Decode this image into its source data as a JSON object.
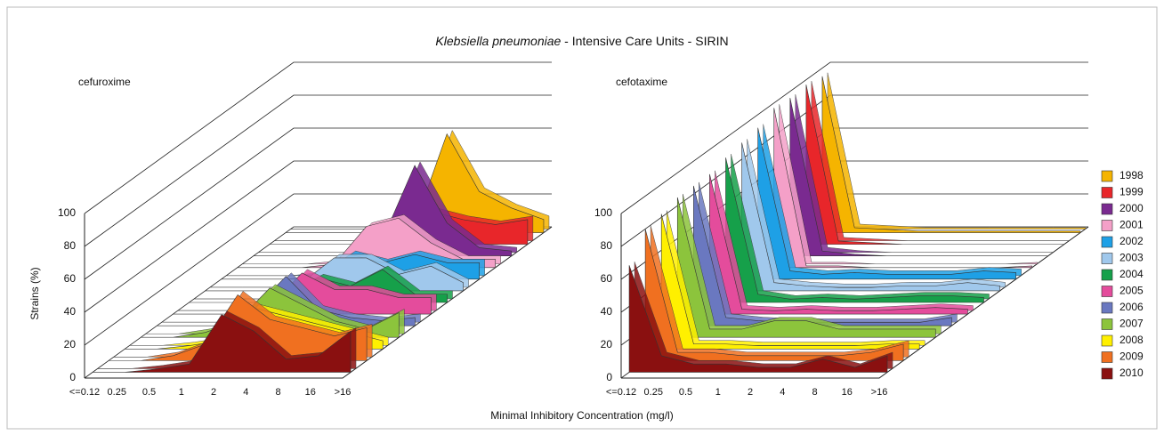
{
  "chart_data": [
    {
      "type": "area3d",
      "title_italic": "Klebsiella pneumoniae",
      "title": " - Intensive Care Units - SIRIN",
      "subtitle": "cefuroxime",
      "ylabel": "Strains (%)",
      "xlabel": "Minimal Inhibitory Concentration (mg/l)",
      "categories": [
        "<=0.12",
        "0.25",
        "0.5",
        "1",
        "2",
        "4",
        "8",
        "16",
        ">16"
      ],
      "ylim": [
        0,
        100
      ],
      "yticks": [
        0,
        20,
        40,
        60,
        80,
        100
      ],
      "grid": true,
      "legend": "right",
      "series": [
        {
          "name": "1998",
          "color": "#f5b400",
          "values": [
            0,
            0,
            0,
            0,
            5,
            60,
            25,
            15,
            8
          ]
        },
        {
          "name": "1999",
          "color": "#e8262a",
          "values": [
            0,
            0,
            0,
            0,
            3,
            20,
            15,
            12,
            15
          ]
        },
        {
          "name": "2000",
          "color": "#7a2a90",
          "values": [
            0,
            0,
            0,
            0,
            10,
            55,
            20,
            5,
            3
          ]
        },
        {
          "name": "2001",
          "color": "#f4a0c8",
          "values": [
            0,
            0,
            0,
            2,
            25,
            30,
            15,
            5,
            5
          ]
        },
        {
          "name": "2002",
          "color": "#1ea0e6",
          "values": [
            0,
            0,
            0,
            2,
            15,
            10,
            15,
            10,
            10
          ]
        },
        {
          "name": "2003",
          "color": "#a0c8ec",
          "values": [
            0,
            0,
            0,
            5,
            20,
            20,
            10,
            15,
            5
          ]
        },
        {
          "name": "2004",
          "color": "#16a04a",
          "values": [
            0,
            0,
            0,
            5,
            15,
            10,
            20,
            5,
            5
          ]
        },
        {
          "name": "2005",
          "color": "#e44c9c",
          "values": [
            0,
            0,
            0,
            5,
            25,
            15,
            15,
            10,
            10
          ]
        },
        {
          "name": "2006",
          "color": "#6a78c0",
          "values": [
            0,
            0,
            0,
            10,
            30,
            10,
            5,
            3,
            5
          ]
        },
        {
          "name": "2007",
          "color": "#8cc43c",
          "values": [
            0,
            0,
            3,
            10,
            30,
            20,
            10,
            5,
            15
          ]
        },
        {
          "name": "2008",
          "color": "#fff000",
          "values": [
            0,
            0,
            2,
            5,
            25,
            20,
            15,
            10,
            5
          ]
        },
        {
          "name": "2009",
          "color": "#f07020",
          "values": [
            0,
            0,
            3,
            10,
            40,
            25,
            20,
            15,
            20
          ]
        },
        {
          "name": "2010",
          "color": "#8a1010",
          "values": [
            0,
            0,
            2,
            5,
            35,
            25,
            8,
            10,
            25
          ]
        }
      ]
    },
    {
      "type": "area3d",
      "subtitle": "cefotaxime",
      "categories": [
        "<=0.12",
        "0.25",
        "0.5",
        "1",
        "2",
        "4",
        "8",
        "16",
        ">16"
      ],
      "ylim": [
        0,
        100
      ],
      "yticks": [
        0,
        20,
        40,
        60,
        80,
        100
      ],
      "grid": true,
      "series": [
        {
          "values": [
            95,
            3,
            2,
            1,
            1,
            1,
            1,
            1,
            1
          ]
        },
        {
          "values": [
            97,
            2,
            1,
            0,
            0,
            0,
            0,
            0,
            0
          ]
        },
        {
          "values": [
            96,
            3,
            1,
            0,
            0,
            0,
            0,
            0,
            0
          ]
        },
        {
          "values": [
            97,
            1,
            1,
            0,
            0,
            0,
            0,
            0,
            1
          ]
        },
        {
          "values": [
            92,
            5,
            3,
            4,
            3,
            3,
            3,
            5,
            4
          ]
        },
        {
          "values": [
            90,
            5,
            3,
            2,
            2,
            3,
            3,
            5,
            3
          ]
        },
        {
          "values": [
            88,
            5,
            2,
            3,
            2,
            3,
            4,
            4,
            3
          ]
        },
        {
          "values": [
            85,
            3,
            2,
            3,
            2,
            2,
            3,
            4,
            3
          ]
        },
        {
          "values": [
            85,
            5,
            3,
            2,
            2,
            2,
            2,
            2,
            5
          ]
        },
        {
          "values": [
            85,
            5,
            5,
            10,
            10,
            5,
            5,
            5,
            5
          ]
        },
        {
          "values": [
            82,
            3,
            3,
            2,
            2,
            2,
            2,
            3,
            3
          ]
        },
        {
          "values": [
            80,
            5,
            5,
            3,
            3,
            3,
            3,
            5,
            10
          ]
        },
        {
          "values": [
            65,
            10,
            5,
            5,
            3,
            3,
            8,
            3,
            10
          ]
        }
      ]
    }
  ]
}
